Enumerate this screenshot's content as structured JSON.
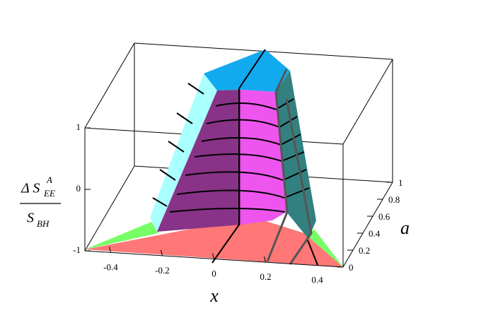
{
  "chart_data": {
    "type": "surface3d",
    "xlabel": "x",
    "ylabel": "a",
    "zlabel": {
      "numerator": "Δ S",
      "numerator_sub": "EE",
      "numerator_sup": "A",
      "denominator": "S",
      "denominator_sub": "BH"
    },
    "xlim": [
      -0.5,
      0.5
    ],
    "xticks": [
      -0.4,
      -0.2,
      0,
      0.2,
      0.4
    ],
    "ylim": [
      0,
      1
    ],
    "yticks": [
      0,
      0.2,
      0.4,
      0.6,
      0.8,
      1
    ],
    "zlim": [
      -1,
      1
    ],
    "zticks": [
      -1,
      0,
      1
    ]
  }
}
